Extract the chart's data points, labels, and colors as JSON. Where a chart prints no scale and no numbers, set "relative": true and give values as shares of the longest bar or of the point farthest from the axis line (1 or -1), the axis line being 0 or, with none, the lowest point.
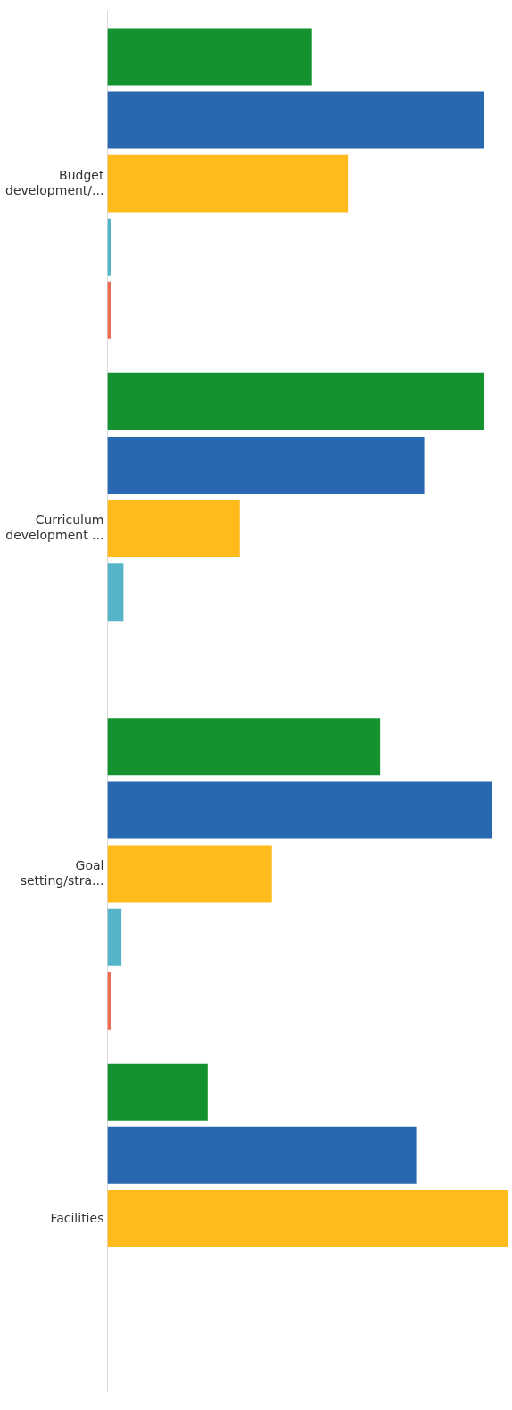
{
  "chart_data": {
    "type": "bar",
    "orientation": "horizontal",
    "relative": true,
    "categories": [
      "Budget development/...",
      "Curriculum development ...",
      "Goal setting/stra...",
      "Facilities"
    ],
    "series": [
      {
        "color": "#13922f",
        "values": [
          0.51,
          0.94,
          0.68,
          0.25
        ]
      },
      {
        "color": "#2768b0",
        "values": [
          0.94,
          0.79,
          0.96,
          0.77
        ]
      },
      {
        "color": "#ffbb1c",
        "values": [
          0.6,
          0.33,
          0.41,
          1
        ]
      },
      {
        "color": "#56b4c8",
        "values": [
          0.01,
          0.04,
          0.035,
          null
        ]
      },
      {
        "color": "#ef6a52",
        "values": [
          0.01,
          0,
          0.01,
          null
        ]
      }
    ]
  }
}
